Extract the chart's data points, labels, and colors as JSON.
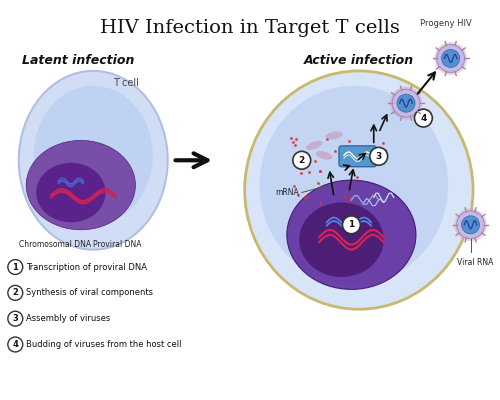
{
  "title": "HIV Infection in Target T cells",
  "title_fontsize": 14,
  "bg_color": "#ffffff",
  "left_label": "Latent infection",
  "right_label": "Active infection",
  "tcell_label": "T cell",
  "chromosomal_dna_label": "Chromosomal DNA",
  "proviral_dna_label": "Proviral DNA",
  "mrna_label": "mRNA",
  "viral_rna_label": "Viral RNA",
  "progeny_label": "Progeny HIV",
  "steps": [
    "Transcription of proviral DNA",
    "Synthesis of viral components",
    "Assembly of viruses",
    "Budding of viruses from the host cell"
  ],
  "cell_outer_color": "#c8d8f0",
  "cell_inner_color": "#a0b8e8",
  "nucleus_color": "#7040a0",
  "nucleus_dark": "#501080",
  "latent_outer": "#d0ddf5",
  "latent_inner": "#b0c8f0",
  "arrow_color": "#111111",
  "virus_color_outer": "#d4a0c0",
  "virus_color_inner": "#5090c0",
  "dot_color": "#cc4444",
  "step_circle_color": "#ffffff",
  "step_circle_edge": "#333333"
}
